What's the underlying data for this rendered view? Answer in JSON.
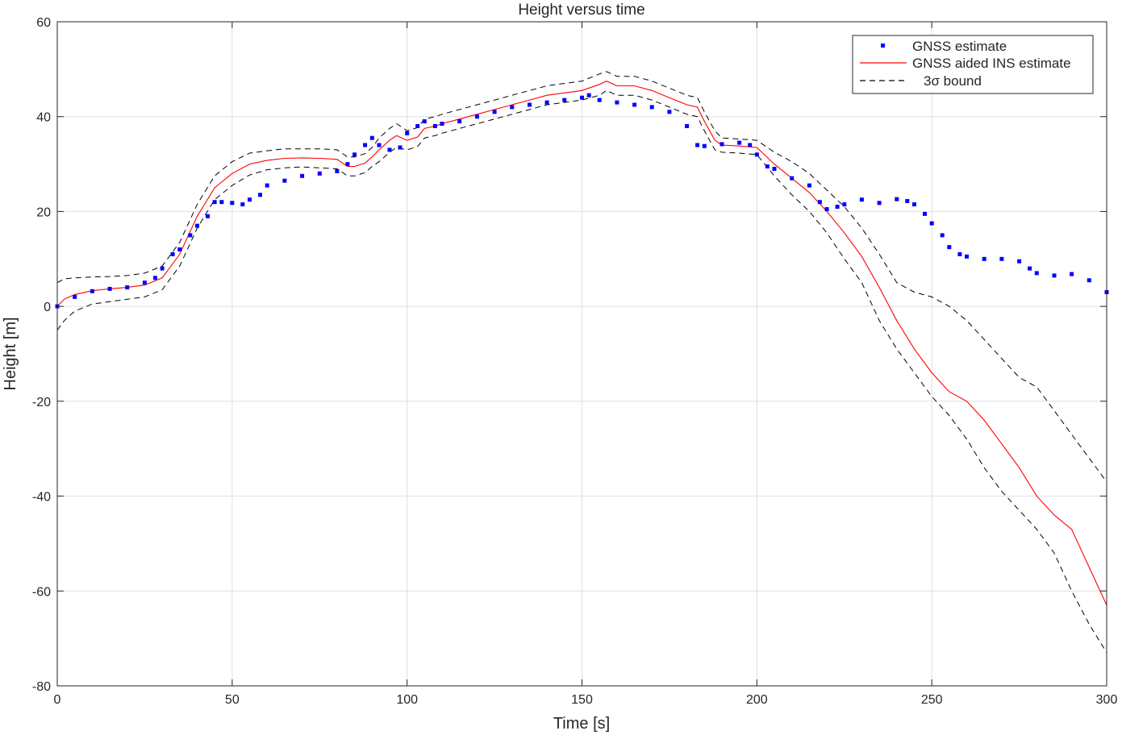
{
  "chart_data": {
    "type": "line",
    "title": "Height versus time",
    "xlabel": "Time [s]",
    "ylabel": "Height [m]",
    "xlim": [
      0,
      300
    ],
    "ylim": [
      -80,
      60
    ],
    "xticks": [
      0,
      50,
      100,
      150,
      200,
      250,
      300
    ],
    "yticks": [
      -80,
      -60,
      -40,
      -20,
      0,
      20,
      40,
      60
    ],
    "grid": true,
    "legend_position": "top-right",
    "series": [
      {
        "name": "GNSS estimate",
        "style": "markers",
        "color": "#0000ff",
        "x": [
          0,
          5,
          10,
          15,
          20,
          25,
          28,
          30,
          33,
          35,
          38,
          40,
          43,
          45,
          47,
          50,
          53,
          55,
          58,
          60,
          65,
          70,
          75,
          80,
          83,
          85,
          88,
          90,
          92,
          95,
          98,
          100,
          103,
          105,
          108,
          110,
          115,
          120,
          125,
          130,
          135,
          140,
          145,
          150,
          152,
          155,
          160,
          165,
          170,
          175,
          180,
          183,
          185,
          190,
          195,
          198,
          200,
          203,
          205,
          210,
          215,
          218,
          220,
          223,
          225,
          230,
          235,
          240,
          243,
          245,
          248,
          250,
          253,
          255,
          258,
          260,
          265,
          270,
          275,
          278,
          280,
          285,
          290,
          295,
          300
        ],
        "y": [
          0,
          2,
          3.2,
          3.7,
          4,
          5,
          6,
          8,
          11,
          12,
          15,
          17,
          19,
          22,
          22,
          21.8,
          21.5,
          22.5,
          23.5,
          25.5,
          26.5,
          27.5,
          28,
          28.5,
          30,
          32,
          34,
          35.5,
          34,
          33,
          33.5,
          36.5,
          38,
          39,
          38,
          38.5,
          39,
          40,
          41,
          42,
          42.5,
          43,
          43.5,
          44,
          44.5,
          43.5,
          43,
          42.5,
          42,
          41,
          38,
          34,
          33.8,
          34.2,
          34.5,
          34,
          32,
          29.5,
          29,
          27,
          25.5,
          22,
          20.5,
          21,
          21.5,
          22.5,
          21.8,
          22.6,
          22.2,
          21.5,
          19.5,
          17.5,
          15,
          12.5,
          11,
          10.5,
          10,
          10,
          9.5,
          8,
          7,
          6.5,
          6.8,
          5.5,
          3
        ]
      },
      {
        "name": "GNSS aided INS estimate",
        "style": "line",
        "color": "#ff0000",
        "x": [
          0,
          2,
          5,
          10,
          15,
          20,
          25,
          30,
          35,
          40,
          45,
          50,
          55,
          60,
          65,
          70,
          75,
          80,
          83,
          85,
          88,
          90,
          92,
          95,
          97,
          100,
          103,
          105,
          108,
          110,
          115,
          120,
          125,
          130,
          135,
          140,
          145,
          150,
          155,
          157,
          160,
          165,
          170,
          175,
          180,
          183,
          185,
          188,
          190,
          195,
          200,
          205,
          210,
          215,
          220,
          225,
          230,
          235,
          240,
          245,
          250,
          255,
          260,
          265,
          270,
          275,
          280,
          285,
          290,
          295,
          300
        ],
        "y": [
          0,
          1.5,
          2.5,
          3.3,
          3.7,
          4,
          4.5,
          6,
          11,
          19,
          25,
          28,
          30,
          30.8,
          31.2,
          31.3,
          31.2,
          31,
          29.5,
          29.5,
          30.2,
          31.5,
          33,
          35,
          36,
          35,
          35.7,
          37.5,
          38,
          38.5,
          39.5,
          40.5,
          41.5,
          42.5,
          43.5,
          44.5,
          45,
          45.5,
          46.8,
          47.5,
          46.5,
          46.5,
          45.5,
          44,
          42.5,
          42,
          39,
          35,
          34,
          33.8,
          33.5,
          30,
          27,
          24,
          20,
          15.5,
          10.5,
          4,
          -3,
          -9,
          -14,
          -18,
          -20,
          -24,
          -29,
          -34,
          -40,
          -44,
          -47,
          -55,
          -63
        ]
      },
      {
        "name": "3σ  bound",
        "style": "dashed",
        "color": "#000000",
        "x": [
          0,
          2,
          5,
          10,
          15,
          20,
          25,
          30,
          35,
          40,
          45,
          50,
          55,
          60,
          65,
          70,
          75,
          80,
          83,
          85,
          88,
          90,
          92,
          95,
          97,
          100,
          103,
          105,
          108,
          110,
          115,
          120,
          125,
          130,
          135,
          140,
          145,
          150,
          155,
          157,
          160,
          165,
          170,
          175,
          180,
          183,
          185,
          188,
          190,
          195,
          200,
          205,
          210,
          215,
          220,
          225,
          230,
          235,
          240,
          245,
          250,
          255,
          260,
          265,
          270,
          275,
          280,
          285,
          290,
          295,
          300
        ],
        "y_upper": [
          5,
          5.8,
          6,
          6.2,
          6.3,
          6.5,
          7,
          8.5,
          13.5,
          21.5,
          27.5,
          30.5,
          32.3,
          32.8,
          33.2,
          33.2,
          33.2,
          33,
          31.5,
          31.5,
          32.2,
          33.5,
          35.5,
          37.5,
          38.5,
          37,
          37.7,
          39.5,
          40,
          40.5,
          41.5,
          42.5,
          43.5,
          44.5,
          45.5,
          46.5,
          47,
          47.5,
          49,
          49.5,
          48.5,
          48.5,
          47.5,
          46,
          44.5,
          44,
          41,
          37,
          35.5,
          35.3,
          35,
          32.5,
          30.5,
          28,
          24.5,
          21,
          16.5,
          11,
          5,
          3,
          2,
          0,
          -3,
          -7,
          -11,
          -15,
          -17,
          -22,
          -27,
          -32,
          -37
        ],
        "y_lower": [
          -5,
          -3,
          -1,
          0.5,
          1,
          1.5,
          2,
          3.5,
          8.5,
          16.5,
          22.5,
          25.5,
          27.7,
          28.8,
          29.2,
          29.4,
          29.2,
          29,
          27.5,
          27.5,
          28.2,
          29.5,
          30.5,
          32.5,
          33.5,
          33,
          33.7,
          35.5,
          36,
          36.5,
          37.5,
          38.5,
          39.5,
          40.5,
          41.5,
          42.5,
          43,
          43.5,
          44.5,
          45.5,
          44.5,
          44.5,
          43.5,
          42,
          40.5,
          40,
          37,
          33,
          32.5,
          32.3,
          32,
          27.5,
          23.5,
          20,
          15.5,
          10,
          5,
          -3,
          -9,
          -14,
          -19,
          -23,
          -28,
          -34,
          -39,
          -43,
          -47,
          -52,
          -60,
          -67,
          -73
        ]
      }
    ]
  }
}
